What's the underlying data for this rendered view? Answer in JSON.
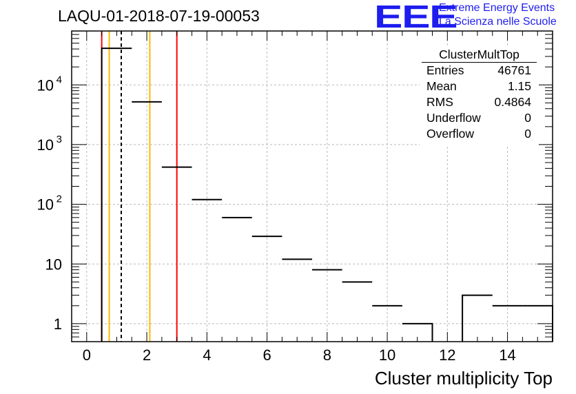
{
  "page_title": "LAQU-01-2018-07-19-00053",
  "logo": {
    "text": "EEE",
    "line1": "Extreme Energy Events",
    "line2": "La Scienza nelle Scuole",
    "color": "#1d1df0"
  },
  "stats": {
    "title": "ClusterMultTop",
    "rows": [
      {
        "label": "Entries",
        "value": "46761"
      },
      {
        "label": "Mean",
        "value": "1.15"
      },
      {
        "label": "RMS",
        "value": "0.4864"
      },
      {
        "label": "Underflow",
        "value": "0"
      },
      {
        "label": "Overflow",
        "value": "0"
      }
    ]
  },
  "chart_data": {
    "type": "bar",
    "title": "LAQU-01-2018-07-19-00053",
    "xlabel": "Cluster multiplicity Top",
    "ylabel": "",
    "xlim": [
      -0.5,
      15.5
    ],
    "ylim": [
      0.5,
      80000
    ],
    "yscale": "log",
    "grid": true,
    "bin_edges": [
      0.5,
      1.5,
      2.5,
      3.5,
      4.5,
      5.5,
      6.5,
      7.5,
      8.5,
      9.5,
      10.5,
      11.5,
      12.5,
      13.5,
      14.5,
      15.5
    ],
    "values": [
      41000,
      5200,
      420,
      120,
      60,
      29,
      12,
      8,
      5,
      2,
      1,
      0,
      3,
      2,
      2
    ],
    "x_ticks": [
      0,
      2,
      4,
      6,
      8,
      10,
      12,
      14
    ],
    "x_tick_labels": [
      "0",
      "2",
      "4",
      "6",
      "8",
      "10",
      "12",
      "14"
    ],
    "y_ticks": [
      1,
      10,
      100,
      1000,
      10000
    ],
    "y_tick_labels": [
      {
        "base": "1",
        "exp": ""
      },
      {
        "base": "10",
        "exp": ""
      },
      {
        "base": "10",
        "exp": "2"
      },
      {
        "base": "10",
        "exp": "3"
      },
      {
        "base": "10",
        "exp": "4"
      }
    ],
    "reference_lines": [
      {
        "x": 0.5,
        "color": "#ff0000",
        "style": "solid"
      },
      {
        "x": 0.75,
        "color": "#ffb800",
        "style": "solid"
      },
      {
        "x": 1.15,
        "color": "#000000",
        "style": "dashed"
      },
      {
        "x": 2.1,
        "color": "#ffb800",
        "style": "solid"
      },
      {
        "x": 3.0,
        "color": "#ff0000",
        "style": "solid"
      }
    ]
  }
}
